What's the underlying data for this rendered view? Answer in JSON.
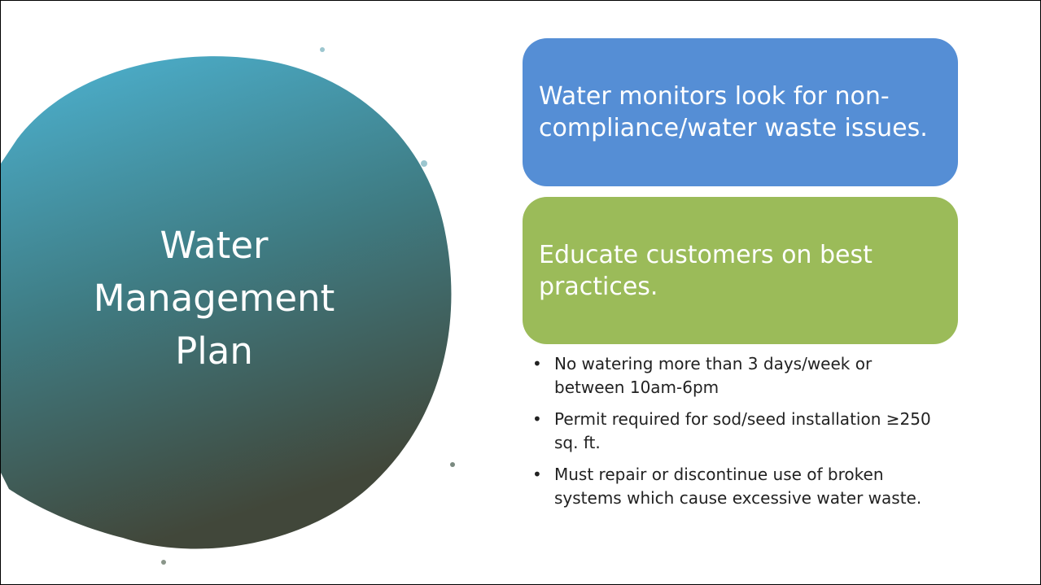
{
  "slide": {
    "title": "Water Management Plan",
    "boxes": [
      {
        "text": "Water monitors look for non-compliance/water waste issues."
      },
      {
        "text": "Educate customers on best practices."
      }
    ],
    "bullets": [
      "No watering more than 3 days/week or between 10am-6pm",
      "Permit required for sod/seed installation ≥250 sq. ft.",
      "Must repair or discontinue use of broken systems which cause excessive water waste."
    ]
  }
}
